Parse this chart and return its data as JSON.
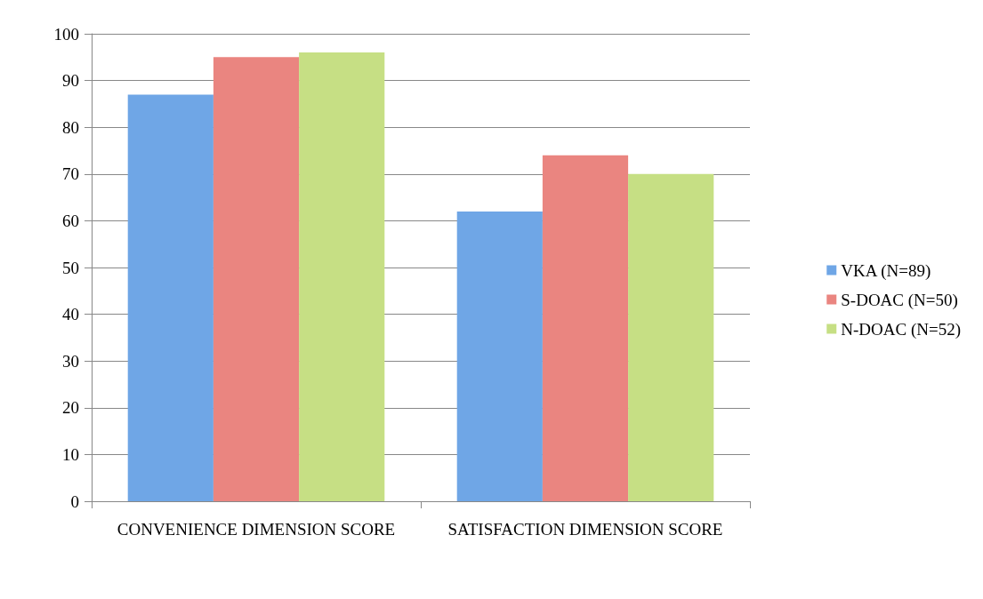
{
  "chart_data": {
    "type": "bar",
    "categories": [
      "CONVENIENCE DIMENSION SCORE",
      "SATISFACTION DIMENSION SCORE"
    ],
    "series": [
      {
        "name": "VKA (N=89)",
        "color": "#6fa6e6",
        "values": [
          87,
          62
        ]
      },
      {
        "name": "S-DOAC (N=50)",
        "color": "#ea8580",
        "values": [
          95,
          74
        ]
      },
      {
        "name": "N-DOAC (N=52)",
        "color": "#c6df84",
        "values": [
          96,
          70
        ]
      }
    ],
    "ylim": [
      0,
      100
    ],
    "yticks": [
      0,
      10,
      20,
      30,
      40,
      50,
      60,
      70,
      80,
      90,
      100
    ],
    "grid": "y",
    "legend": "right"
  }
}
